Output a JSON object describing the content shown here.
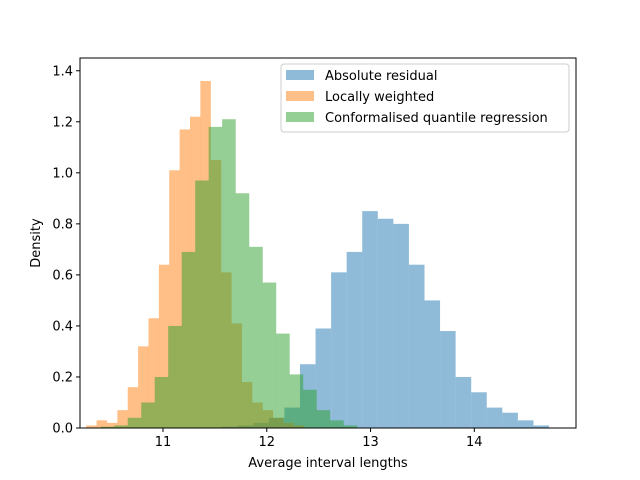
{
  "chart_data": {
    "type": "histogram",
    "title": "",
    "xlabel": "Average interval lengths",
    "ylabel": "Density",
    "xlim": [
      10.2,
      14.98
    ],
    "ylim": [
      0,
      1.45
    ],
    "xticks": [
      11,
      12,
      13,
      14
    ],
    "yticks": [
      0.0,
      0.2,
      0.4,
      0.6,
      0.8,
      1.0,
      1.2,
      1.4
    ],
    "tick_labels_x": [
      "11",
      "12",
      "13",
      "14"
    ],
    "tick_labels_y": [
      "0.0",
      "0.2",
      "0.4",
      "0.6",
      "0.8",
      "1.0",
      "1.2",
      "1.4"
    ],
    "grid": false,
    "legend_position": "top-right",
    "bar_alpha": 0.5,
    "series": [
      {
        "name": "Absolute residual",
        "color": "#1f77b4",
        "bin_width": 0.15,
        "bins": [
          [
            11.57,
            0.005
          ],
          [
            11.72,
            0.01
          ],
          [
            11.87,
            0.02
          ],
          [
            12.02,
            0.04
          ],
          [
            12.17,
            0.08
          ],
          [
            12.32,
            0.25
          ],
          [
            12.47,
            0.39
          ],
          [
            12.62,
            0.61
          ],
          [
            12.77,
            0.69
          ],
          [
            12.92,
            0.85
          ],
          [
            13.07,
            0.82
          ],
          [
            13.22,
            0.8
          ],
          [
            13.37,
            0.64
          ],
          [
            13.52,
            0.5
          ],
          [
            13.67,
            0.38
          ],
          [
            13.82,
            0.2
          ],
          [
            13.97,
            0.14
          ],
          [
            14.12,
            0.08
          ],
          [
            14.27,
            0.06
          ],
          [
            14.42,
            0.03
          ],
          [
            14.57,
            0.01
          ]
        ]
      },
      {
        "name": "Locally weighted",
        "color": "#ff7f0e",
        "bin_width": 0.101,
        "bins": [
          [
            10.26,
            0.01
          ],
          [
            10.36,
            0.03
          ],
          [
            10.46,
            0.02
          ],
          [
            10.56,
            0.07
          ],
          [
            10.66,
            0.16
          ],
          [
            10.76,
            0.32
          ],
          [
            10.86,
            0.43
          ],
          [
            10.96,
            0.64
          ],
          [
            11.06,
            1.01
          ],
          [
            11.16,
            1.17
          ],
          [
            11.26,
            1.22
          ],
          [
            11.36,
            1.36
          ],
          [
            11.46,
            1.05
          ],
          [
            11.56,
            0.61
          ],
          [
            11.66,
            0.41
          ],
          [
            11.76,
            0.18
          ],
          [
            11.86,
            0.1
          ],
          [
            11.96,
            0.07
          ],
          [
            12.06,
            0.04
          ],
          [
            12.16,
            0.02
          ],
          [
            12.26,
            0.01
          ]
        ]
      },
      {
        "name": "Conformalised quantile regression",
        "color": "#2ca02c",
        "bin_width": 0.131,
        "bins": [
          [
            10.4,
            0.005
          ],
          [
            10.53,
            0.01
          ],
          [
            10.66,
            0.04
          ],
          [
            10.79,
            0.1
          ],
          [
            10.92,
            0.2
          ],
          [
            11.05,
            0.4
          ],
          [
            11.18,
            0.69
          ],
          [
            11.31,
            0.97
          ],
          [
            11.44,
            1.18
          ],
          [
            11.57,
            1.21
          ],
          [
            11.7,
            0.92
          ],
          [
            11.83,
            0.71
          ],
          [
            11.96,
            0.57
          ],
          [
            12.09,
            0.37
          ],
          [
            12.22,
            0.21
          ],
          [
            12.35,
            0.15
          ],
          [
            12.48,
            0.07
          ],
          [
            12.61,
            0.03
          ],
          [
            12.74,
            0.01
          ]
        ]
      }
    ]
  }
}
